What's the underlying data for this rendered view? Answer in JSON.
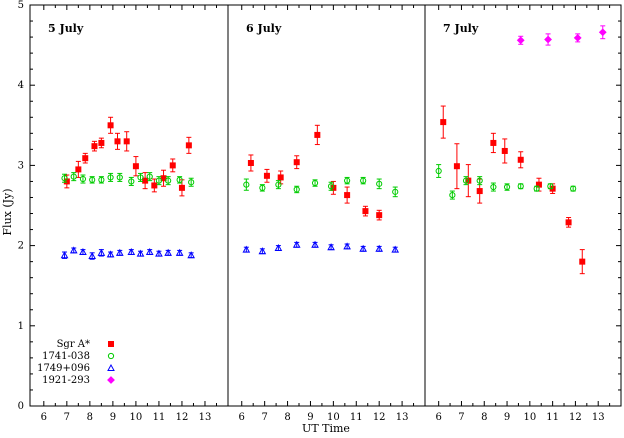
{
  "chart_data": {
    "type": "scatter",
    "xlabel": "UT Time",
    "ylabel": "Flux (Jy)",
    "ylim": [
      0,
      5
    ],
    "yticks": [
      "0",
      "1",
      "2",
      "3",
      "4",
      "5"
    ],
    "legend_position": "bottom-left",
    "series_styles": [
      {
        "name": "Sgr A*",
        "color": "#ff0000",
        "marker": "filled-square"
      },
      {
        "name": "1741-038",
        "color": "#00cc00",
        "marker": "open-circle"
      },
      {
        "name": "1749+096",
        "color": "#0000ff",
        "marker": "open-triangle"
      },
      {
        "name": "1921-293",
        "color": "#ff00ff",
        "marker": "open-diamond"
      }
    ],
    "panels": [
      {
        "title": "5 July",
        "xlim": [
          5.4,
          14
        ],
        "xticks": [
          "6",
          "7",
          "8",
          "9",
          "10",
          "11",
          "12",
          "13"
        ],
        "series": [
          {
            "name": "Sgr A*",
            "points": [
              [
                7.0,
                2.8,
                0.08
              ],
              [
                7.5,
                2.95,
                0.1
              ],
              [
                7.8,
                3.09,
                0.06
              ],
              [
                8.2,
                3.24,
                0.06
              ],
              [
                8.5,
                3.28,
                0.06
              ],
              [
                8.9,
                3.5,
                0.1
              ],
              [
                9.2,
                3.3,
                0.1
              ],
              [
                9.6,
                3.3,
                0.12
              ],
              [
                10.0,
                2.99,
                0.12
              ],
              [
                10.4,
                2.81,
                0.1
              ],
              [
                10.8,
                2.75,
                0.08
              ],
              [
                11.2,
                2.84,
                0.1
              ],
              [
                11.6,
                3.0,
                0.08
              ],
              [
                12.0,
                2.72,
                0.1
              ],
              [
                12.3,
                3.25,
                0.1
              ]
            ]
          },
          {
            "name": "1741-038",
            "points": [
              [
                6.9,
                2.84,
                0.05
              ],
              [
                7.3,
                2.86,
                0.05
              ],
              [
                7.7,
                2.83,
                0.05
              ],
              [
                8.1,
                2.82,
                0.04
              ],
              [
                8.5,
                2.82,
                0.04
              ],
              [
                8.9,
                2.85,
                0.05
              ],
              [
                9.3,
                2.85,
                0.05
              ],
              [
                9.8,
                2.8,
                0.05
              ],
              [
                10.2,
                2.85,
                0.05
              ],
              [
                10.6,
                2.86,
                0.05
              ],
              [
                11.0,
                2.81,
                0.05
              ],
              [
                11.4,
                2.81,
                0.05
              ],
              [
                11.9,
                2.82,
                0.04
              ],
              [
                12.4,
                2.79,
                0.05
              ]
            ]
          },
          {
            "name": "1749+096",
            "points": [
              [
                6.9,
                1.88,
                0.04
              ],
              [
                7.3,
                1.94,
                0.03
              ],
              [
                7.7,
                1.92,
                0.03
              ],
              [
                8.1,
                1.87,
                0.04
              ],
              [
                8.5,
                1.91,
                0.04
              ],
              [
                8.9,
                1.89,
                0.03
              ],
              [
                9.3,
                1.91,
                0.03
              ],
              [
                9.8,
                1.92,
                0.03
              ],
              [
                10.2,
                1.9,
                0.03
              ],
              [
                10.6,
                1.92,
                0.03
              ],
              [
                11.0,
                1.9,
                0.03
              ],
              [
                11.4,
                1.91,
                0.03
              ],
              [
                11.9,
                1.91,
                0.03
              ],
              [
                12.4,
                1.88,
                0.03
              ]
            ]
          }
        ]
      },
      {
        "title": "6 July",
        "xlim": [
          5.4,
          14
        ],
        "xticks": [
          "6",
          "7",
          "8",
          "9",
          "10",
          "11",
          "12",
          "13"
        ],
        "series": [
          {
            "name": "Sgr A*",
            "points": [
              [
                6.4,
                3.03,
                0.1
              ],
              [
                7.1,
                2.87,
                0.08
              ],
              [
                7.7,
                2.85,
                0.08
              ],
              [
                8.4,
                3.04,
                0.08
              ],
              [
                9.3,
                3.38,
                0.12
              ],
              [
                10.0,
                2.72,
                0.08
              ],
              [
                10.6,
                2.63,
                0.1
              ],
              [
                11.4,
                2.43,
                0.06
              ],
              [
                12.0,
                2.38,
                0.06
              ]
            ]
          },
          {
            "name": "1741-038",
            "points": [
              [
                6.2,
                2.76,
                0.07
              ],
              [
                6.9,
                2.72,
                0.04
              ],
              [
                7.6,
                2.76,
                0.05
              ],
              [
                8.4,
                2.7,
                0.04
              ],
              [
                9.2,
                2.78,
                0.04
              ],
              [
                9.9,
                2.74,
                0.05
              ],
              [
                10.6,
                2.81,
                0.04
              ],
              [
                11.3,
                2.81,
                0.04
              ],
              [
                12.0,
                2.77,
                0.06
              ],
              [
                12.7,
                2.67,
                0.06
              ]
            ]
          },
          {
            "name": "1749+096",
            "points": [
              [
                6.2,
                1.95,
                0.03
              ],
              [
                6.9,
                1.93,
                0.03
              ],
              [
                7.6,
                1.97,
                0.03
              ],
              [
                8.4,
                2.01,
                0.03
              ],
              [
                9.2,
                2.01,
                0.03
              ],
              [
                9.9,
                1.98,
                0.03
              ],
              [
                10.6,
                1.99,
                0.03
              ],
              [
                11.3,
                1.96,
                0.03
              ],
              [
                12.0,
                1.96,
                0.03
              ],
              [
                12.7,
                1.95,
                0.03
              ]
            ]
          }
        ]
      },
      {
        "title": "7 July",
        "xlim": [
          5.4,
          14
        ],
        "xticks": [
          "6",
          "7",
          "8",
          "9",
          "10",
          "11",
          "12",
          "13"
        ],
        "series": [
          {
            "name": "Sgr A*",
            "points": [
              [
                6.2,
                3.54,
                0.2
              ],
              [
                6.8,
                2.99,
                0.28
              ],
              [
                7.3,
                2.81,
                0.2
              ],
              [
                7.8,
                2.68,
                0.15
              ],
              [
                8.4,
                3.28,
                0.12
              ],
              [
                8.9,
                3.18,
                0.15
              ],
              [
                9.6,
                3.07,
                0.1
              ],
              [
                10.4,
                2.76,
                0.08
              ],
              [
                11.0,
                2.71,
                0.06
              ],
              [
                11.7,
                2.29,
                0.06
              ],
              [
                12.3,
                1.8,
                0.15
              ]
            ]
          },
          {
            "name": "1741-038",
            "points": [
              [
                6.0,
                2.93,
                0.08
              ],
              [
                6.6,
                2.63,
                0.05
              ],
              [
                7.2,
                2.81,
                0.05
              ],
              [
                7.8,
                2.81,
                0.05
              ],
              [
                8.4,
                2.73,
                0.05
              ],
              [
                9.0,
                2.73,
                0.04
              ],
              [
                9.6,
                2.74,
                0.03
              ],
              [
                10.3,
                2.71,
                0.03
              ],
              [
                10.9,
                2.74,
                0.03
              ],
              [
                11.9,
                2.71,
                0.03
              ]
            ]
          },
          {
            "name": "1921-293",
            "points": [
              [
                9.6,
                4.56,
                0.05
              ],
              [
                10.8,
                4.57,
                0.07
              ],
              [
                12.1,
                4.59,
                0.05
              ],
              [
                13.2,
                4.66,
                0.08
              ]
            ]
          }
        ]
      }
    ]
  }
}
